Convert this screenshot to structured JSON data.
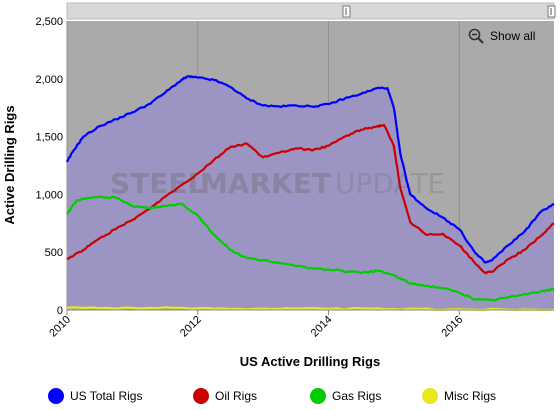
{
  "chart_data": {
    "type": "area",
    "title": "",
    "xlabel": "US Active Drilling Rigs",
    "ylabel": "Active Drilling Rigs",
    "xlim": [
      2010.0,
      2017.45
    ],
    "ylim": [
      0,
      2500
    ],
    "x_ticks": [
      "2010",
      "2012",
      "2014",
      "2016"
    ],
    "y_ticks": [
      "0",
      "500",
      "1,000",
      "1,500",
      "2,000",
      "2,500"
    ],
    "grid": "vertical",
    "legend_position": "bottom",
    "colors": {
      "plot_background": "#aaaaaa",
      "total_fill": "#9c95c3",
      "US Total Rigs": "#0000ff",
      "Oil Rigs": "#cc0000",
      "Gas Rigs": "#00cc00",
      "Misc Rigs": "#e8e820"
    },
    "series": [
      {
        "name": "US Total Rigs",
        "x": [
          2010.0,
          2010.1,
          2010.25,
          2010.5,
          2010.75,
          2011.0,
          2011.25,
          2011.5,
          2011.75,
          2011.85,
          2012.0,
          2012.25,
          2012.5,
          2012.75,
          2013.0,
          2013.25,
          2013.5,
          2013.75,
          2014.0,
          2014.25,
          2014.5,
          2014.75,
          2014.9,
          2015.0,
          2015.1,
          2015.25,
          2015.5,
          2015.75,
          2016.0,
          2016.25,
          2016.4,
          2016.5,
          2016.75,
          2017.0,
          2017.25,
          2017.45
        ],
        "values": [
          1280,
          1380,
          1500,
          1590,
          1650,
          1710,
          1780,
          1880,
          1990,
          2020,
          2010,
          1990,
          1930,
          1830,
          1770,
          1760,
          1770,
          1760,
          1780,
          1830,
          1870,
          1920,
          1920,
          1750,
          1350,
          1000,
          880,
          800,
          700,
          490,
          410,
          430,
          560,
          680,
          850,
          920
        ]
      },
      {
        "name": "Oil Rigs",
        "x": [
          2010.0,
          2010.25,
          2010.5,
          2010.75,
          2011.0,
          2011.25,
          2011.5,
          2011.75,
          2012.0,
          2012.25,
          2012.5,
          2012.75,
          2013.0,
          2013.25,
          2013.5,
          2013.75,
          2014.0,
          2014.25,
          2014.5,
          2014.75,
          2014.85,
          2015.0,
          2015.1,
          2015.25,
          2015.5,
          2015.75,
          2016.0,
          2016.25,
          2016.4,
          2016.5,
          2016.75,
          2017.0,
          2017.25,
          2017.45
        ],
        "values": [
          440,
          520,
          620,
          700,
          780,
          870,
          980,
          1080,
          1180,
          1300,
          1410,
          1440,
          1320,
          1360,
          1400,
          1380,
          1420,
          1500,
          1560,
          1590,
          1600,
          1420,
          1050,
          760,
          650,
          660,
          560,
          400,
          320,
          330,
          440,
          520,
          640,
          750
        ]
      },
      {
        "name": "Gas Rigs",
        "x": [
          2010.0,
          2010.15,
          2010.5,
          2010.75,
          2011.0,
          2011.25,
          2011.5,
          2011.75,
          2012.0,
          2012.25,
          2012.5,
          2012.75,
          2013.0,
          2013.5,
          2014.0,
          2014.5,
          2014.75,
          2015.0,
          2015.25,
          2015.5,
          2015.75,
          2016.0,
          2016.25,
          2016.5,
          2016.75,
          2017.0,
          2017.25,
          2017.45
        ],
        "values": [
          830,
          950,
          980,
          970,
          900,
          880,
          900,
          920,
          820,
          650,
          520,
          450,
          430,
          380,
          350,
          320,
          340,
          300,
          230,
          210,
          190,
          150,
          90,
          85,
          110,
          140,
          160,
          180
        ]
      },
      {
        "name": "Misc Rigs",
        "x": [
          2010.0,
          2011.0,
          2012.0,
          2013.0,
          2014.0,
          2015.0,
          2016.0,
          2017.0,
          2017.45
        ],
        "values": [
          20,
          18,
          15,
          12,
          10,
          8,
          5,
          4,
          3
        ]
      }
    ]
  },
  "watermark": {
    "brand": "STEEL",
    "brand2": "MARKET",
    "brand3": "UPDATE"
  },
  "controls": {
    "show_all_label": "Show all"
  }
}
